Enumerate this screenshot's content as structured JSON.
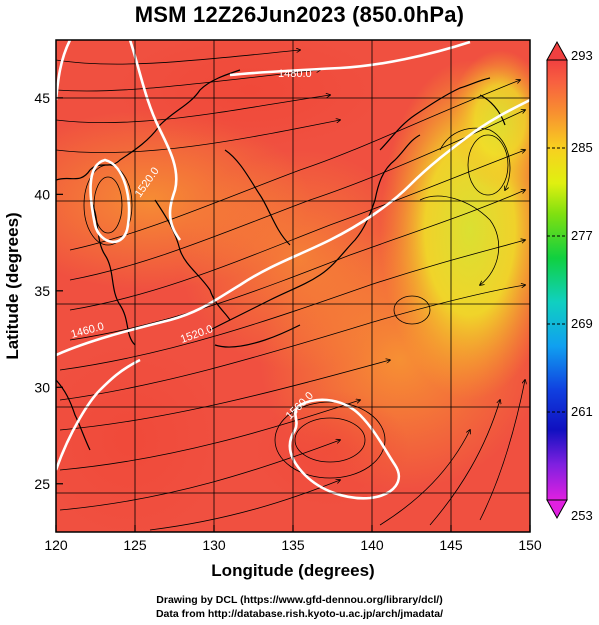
{
  "title": "MSM 12Z26Jun2023 (850.0hPa)",
  "xaxis": {
    "label": "Longitude (degrees)",
    "range": [
      120,
      150
    ],
    "ticks": [
      "120",
      "125",
      "130",
      "135",
      "140",
      "145",
      "150"
    ]
  },
  "yaxis": {
    "label": "Latitude  (degrees)",
    "range": [
      22.5,
      48
    ],
    "ticks": [
      "25",
      "30",
      "35",
      "40",
      "45"
    ]
  },
  "colorbar": {
    "ticks": [
      "293",
      "285",
      "277",
      "269",
      "261",
      "253"
    ],
    "range": [
      253,
      293
    ],
    "colors": [
      "#e020e0",
      "#6020e0",
      "#1010d0",
      "#1070f0",
      "#10c0e0",
      "#10d0a0",
      "#10d030",
      "#60e010",
      "#b0f010",
      "#f0f010",
      "#f8c020",
      "#f89030",
      "#f86040",
      "#f04040"
    ]
  },
  "contours": {
    "labels": [
      "1480.0",
      "1520.0",
      "1560.0",
      "1520.0",
      "1460.0"
    ]
  },
  "credits": {
    "line1": "Drawing by DCL (https://www.gfd-dennou.org/library/dcl/)",
    "line2": "Data from http://database.rish.kyoto-u.ac.jp/arch/jmadata/"
  }
}
